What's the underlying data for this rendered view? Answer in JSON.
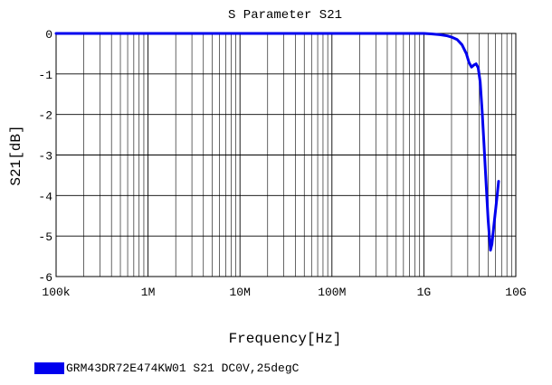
{
  "chart_data": {
    "type": "line",
    "title": "S Parameter S21",
    "xlabel": "Frequency[Hz]",
    "ylabel": "S21[dB]",
    "xscale": "log",
    "xlim": [
      100000,
      10000000000
    ],
    "ylim": [
      -6,
      0
    ],
    "x_ticks": [
      100000,
      1000000,
      10000000,
      100000000,
      1000000000,
      10000000000
    ],
    "x_tick_labels": [
      "100k",
      "1M",
      "10M",
      "100M",
      "1G",
      "10G"
    ],
    "y_ticks": [
      0,
      -1,
      -2,
      -3,
      -4,
      -5,
      -6
    ],
    "y_tick_labels": [
      "0",
      "-1",
      "-2",
      "-3",
      "-4",
      "-5",
      "-6"
    ],
    "grid": true,
    "legend_position": "bottom-left",
    "series": [
      {
        "name": "GRM43DR72E474KW01 S21 DC0V,25degC",
        "color": "#0000ee",
        "x": [
          100000,
          1000000,
          10000000,
          100000000,
          1000000000,
          1200000000,
          1500000000,
          1800000000,
          2000000000,
          2300000000,
          2600000000,
          2900000000,
          3100000000,
          3300000000,
          3500000000,
          3700000000,
          3900000000,
          4100000000,
          4300000000,
          4500000000,
          4700000000,
          5000000000,
          5300000000,
          5500000000,
          5800000000,
          6200000000,
          6500000000
        ],
        "y": [
          0,
          0,
          0,
          0,
          0,
          -0.01,
          -0.03,
          -0.06,
          -0.09,
          -0.15,
          -0.28,
          -0.5,
          -0.72,
          -0.83,
          -0.78,
          -0.75,
          -0.85,
          -1.2,
          -1.9,
          -2.7,
          -3.5,
          -4.6,
          -5.35,
          -5.2,
          -4.7,
          -4.1,
          -3.65
        ]
      }
    ]
  }
}
